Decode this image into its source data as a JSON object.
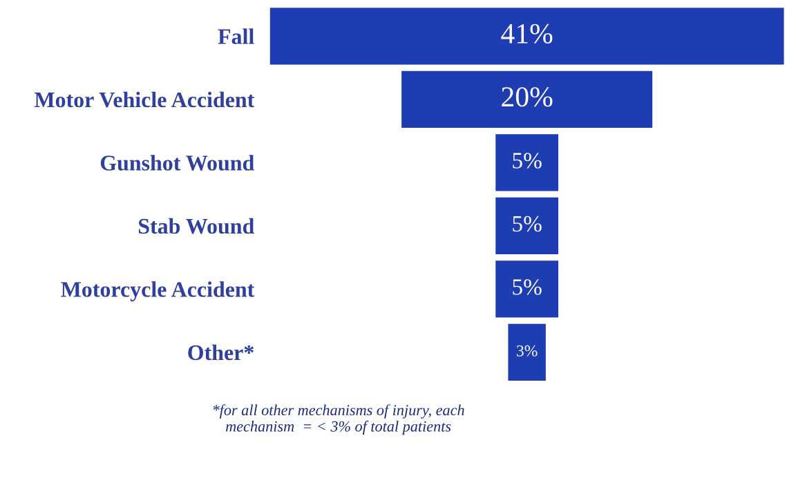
{
  "chart_data": {
    "type": "other",
    "categories": [
      "Fall",
      "Motor Vehicle Accident",
      "Gunshot Wound",
      "Stab Wound",
      "Motorcycle Accident",
      "Other*"
    ],
    "values": [
      41,
      20,
      5,
      5,
      5,
      3
    ],
    "value_labels": [
      "41%",
      "20%",
      "5%",
      "5%",
      "5%",
      "3%"
    ],
    "color": "#1f3db3",
    "annotations": [
      "*for all other mechanisms of injury, each\nmechanism  = < 3% of total patients"
    ]
  }
}
